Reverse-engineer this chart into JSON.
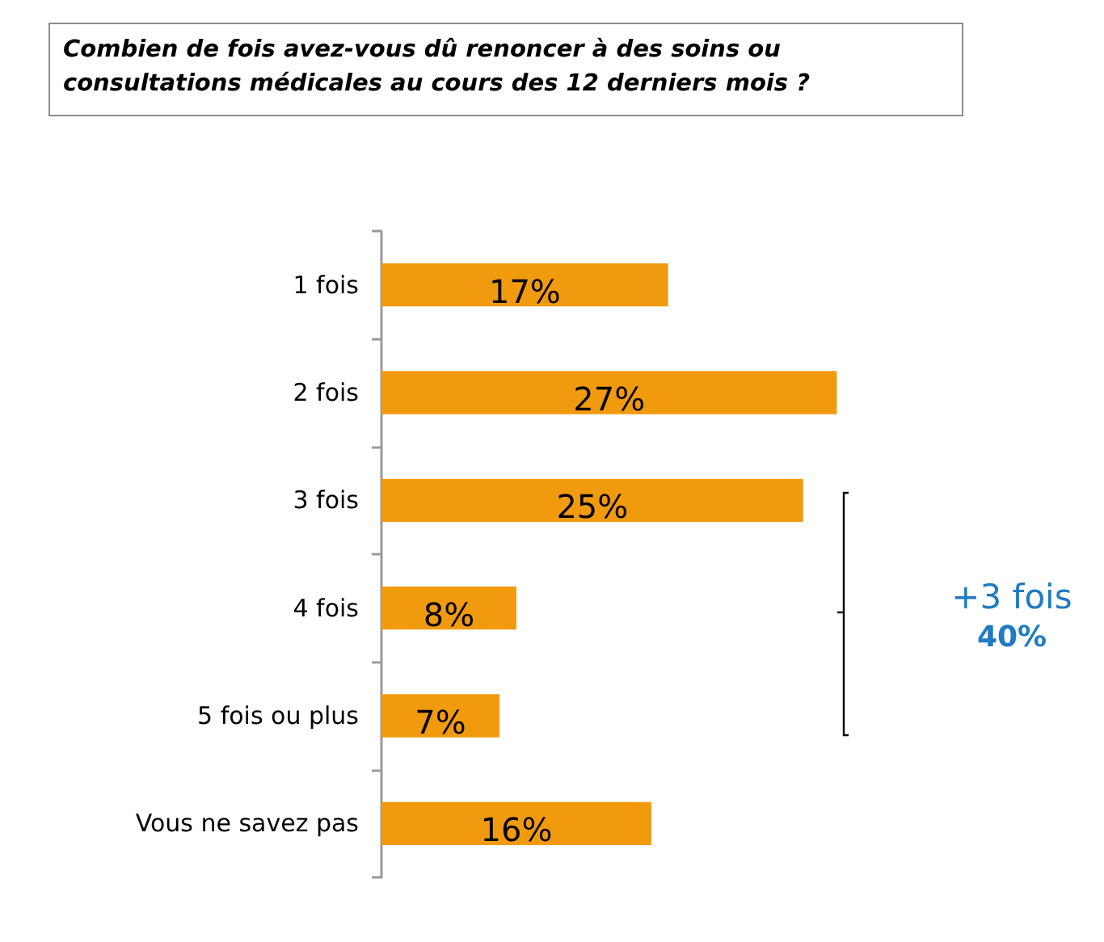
{
  "chart_data": {
    "type": "bar",
    "orientation": "horizontal",
    "title": "Combien de fois avez-vous dû renoncer à des soins ou consultations médicales au cours des 12 derniers mois ?",
    "categories": [
      "1 fois",
      "2 fois",
      "3 fois",
      "4 fois",
      "5 fois ou plus",
      "Vous ne savez pas"
    ],
    "values": [
      17,
      27,
      25,
      8,
      7,
      16
    ],
    "value_labels": [
      "17%",
      "27%",
      "25%",
      "8%",
      "7%",
      "16%"
    ],
    "color": "#f29a0e",
    "annotations": [
      "+3 fois",
      "40%"
    ],
    "grid": false,
    "tick_labels": "y"
  }
}
